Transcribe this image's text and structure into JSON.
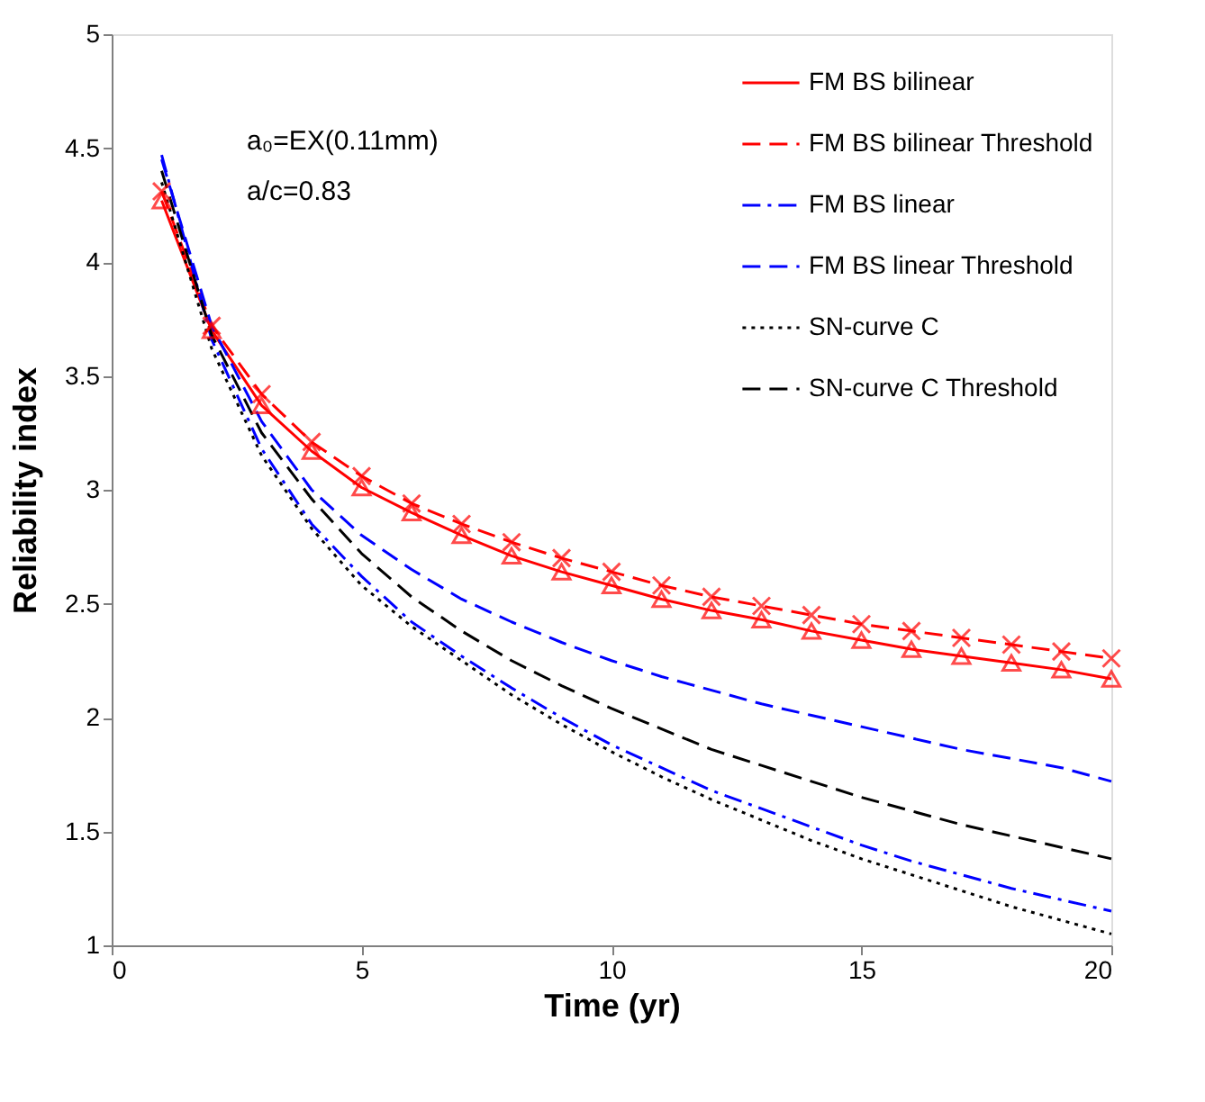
{
  "chart_data": {
    "type": "line",
    "xlabel": "Time (yr)",
    "ylabel": "Reliability index",
    "x": [
      1,
      2,
      3,
      4,
      5,
      6,
      7,
      8,
      9,
      10,
      11,
      12,
      13,
      14,
      15,
      16,
      17,
      18,
      19,
      20
    ],
    "xlim": [
      0,
      20
    ],
    "xticks": [
      0,
      5,
      10,
      15,
      20
    ],
    "ylim": [
      1,
      5
    ],
    "yticks": [
      1,
      1.5,
      2,
      2.5,
      3,
      3.5,
      4,
      4.5,
      5
    ],
    "grid": false,
    "legend": "top right",
    "annotations": [
      "a₀=EX(0.11mm)",
      "a/c=0.83"
    ],
    "series": [
      {
        "name": "FM BS bilinear",
        "color": "#ff0000",
        "line_style": "solid",
        "marker": "triangle",
        "values": [
          4.27,
          3.7,
          3.37,
          3.17,
          3.01,
          2.9,
          2.8,
          2.71,
          2.64,
          2.58,
          2.52,
          2.47,
          2.43,
          2.38,
          2.34,
          2.3,
          2.27,
          2.24,
          2.21,
          2.17
        ]
      },
      {
        "name": "FM BS bilinear Threshold",
        "color": "#ff0000",
        "line_style": "dashed",
        "marker": "cross",
        "values": [
          4.31,
          3.72,
          3.42,
          3.21,
          3.06,
          2.94,
          2.85,
          2.77,
          2.7,
          2.64,
          2.58,
          2.53,
          2.49,
          2.45,
          2.41,
          2.38,
          2.35,
          2.32,
          2.29,
          2.26
        ]
      },
      {
        "name": "FM BS linear",
        "color": "#0000ff",
        "line_style": "dashdot",
        "marker": "none",
        "values": [
          4.47,
          3.66,
          3.18,
          2.85,
          2.62,
          2.42,
          2.27,
          2.13,
          2.0,
          1.88,
          1.78,
          1.68,
          1.6,
          1.52,
          1.44,
          1.37,
          1.31,
          1.25,
          1.2,
          1.15
        ]
      },
      {
        "name": "FM BS linear Threshold",
        "color": "#0000ff",
        "line_style": "dashed",
        "marker": "none",
        "values": [
          4.45,
          3.72,
          3.3,
          3.0,
          2.8,
          2.65,
          2.52,
          2.42,
          2.33,
          2.25,
          2.18,
          2.12,
          2.06,
          2.01,
          1.96,
          1.91,
          1.86,
          1.82,
          1.78,
          1.72
        ]
      },
      {
        "name": "SN-curve C",
        "color": "#000000",
        "line_style": "dotted",
        "marker": "none",
        "values": [
          4.35,
          3.62,
          3.15,
          2.83,
          2.58,
          2.4,
          2.25,
          2.1,
          1.97,
          1.85,
          1.74,
          1.64,
          1.55,
          1.46,
          1.38,
          1.31,
          1.24,
          1.17,
          1.11,
          1.05
        ]
      },
      {
        "name": "SN-curve C Threshold",
        "color": "#000000",
        "line_style": "dashed",
        "marker": "none",
        "values": [
          4.4,
          3.68,
          3.25,
          2.96,
          2.72,
          2.53,
          2.38,
          2.25,
          2.14,
          2.04,
          1.95,
          1.86,
          1.79,
          1.72,
          1.65,
          1.59,
          1.53,
          1.48,
          1.43,
          1.38
        ]
      }
    ]
  }
}
